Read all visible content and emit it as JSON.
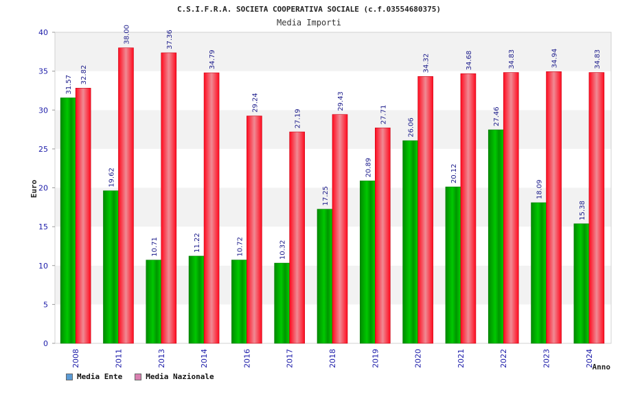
{
  "chart_data": {
    "type": "bar",
    "title": "C.S.I.F.R.A. SOCIETA COOPERATIVA SOCIALE (c.f.03554680375)",
    "subtitle": "Media Importi",
    "xlabel": "Anno",
    "ylabel": "Euro",
    "ylim": [
      0,
      40
    ],
    "yticks": [
      0,
      5,
      10,
      15,
      20,
      25,
      30,
      35,
      40
    ],
    "grid": true,
    "legend_position": "bottom-left",
    "categories": [
      "2008",
      "2011",
      "2013",
      "2014",
      "2016",
      "2017",
      "2018",
      "2019",
      "2020",
      "2021",
      "2022",
      "2023",
      "2024"
    ],
    "series": [
      {
        "name": "Media Ente",
        "color": "#00b000",
        "legend_color": "#5b9bd5",
        "values": [
          31.57,
          19.62,
          10.71,
          11.22,
          10.72,
          10.32,
          17.25,
          20.89,
          26.06,
          20.12,
          27.46,
          18.09,
          15.38
        ],
        "labels": [
          "31.57",
          "19.62",
          "10.71",
          "11.22",
          "10.72",
          "10.32",
          "17.25",
          "20.89",
          "26.06",
          "20.12",
          "27.46",
          "18.09",
          "15.38"
        ]
      },
      {
        "name": "Media Nazionale",
        "color": "#e8001a",
        "legend_color": "#d97fb0",
        "values": [
          32.82,
          38.0,
          37.36,
          34.79,
          29.24,
          27.19,
          29.43,
          27.71,
          34.32,
          34.68,
          34.83,
          34.94,
          34.83
        ],
        "labels": [
          "32.82",
          "38.00",
          "37.36",
          "34.79",
          "29.24",
          "27.19",
          "29.43",
          "27.71",
          "34.32",
          "34.68",
          "34.83",
          "34.94",
          "34.83"
        ]
      }
    ]
  }
}
